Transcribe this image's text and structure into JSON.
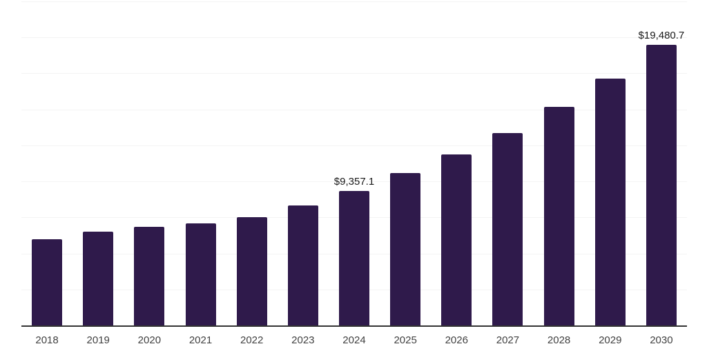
{
  "chart_data": {
    "type": "bar",
    "title": "",
    "xlabel": "",
    "ylabel": "",
    "categories": [
      "2018",
      "2019",
      "2020",
      "2021",
      "2022",
      "2023",
      "2024",
      "2025",
      "2026",
      "2027",
      "2028",
      "2029",
      "2030"
    ],
    "values": [
      6000,
      6510,
      6850,
      7090,
      7500,
      8350,
      9357.1,
      10570,
      11890,
      13370,
      15160,
      17140,
      19480.7
    ],
    "point_labels": {
      "2024": "$9,357.1",
      "2030": "$19,480.7"
    },
    "ylim": [
      0,
      22500
    ],
    "gridline_step": 2500,
    "grid": true,
    "legend": "none",
    "currency": "$"
  },
  "colors": {
    "bar": "#2F1A4B",
    "axis_line": "#333333",
    "gridline": "#F4F4F4",
    "tick_label": "#404040",
    "data_label": "#1A1A1A",
    "background": "#FFFFFF"
  }
}
